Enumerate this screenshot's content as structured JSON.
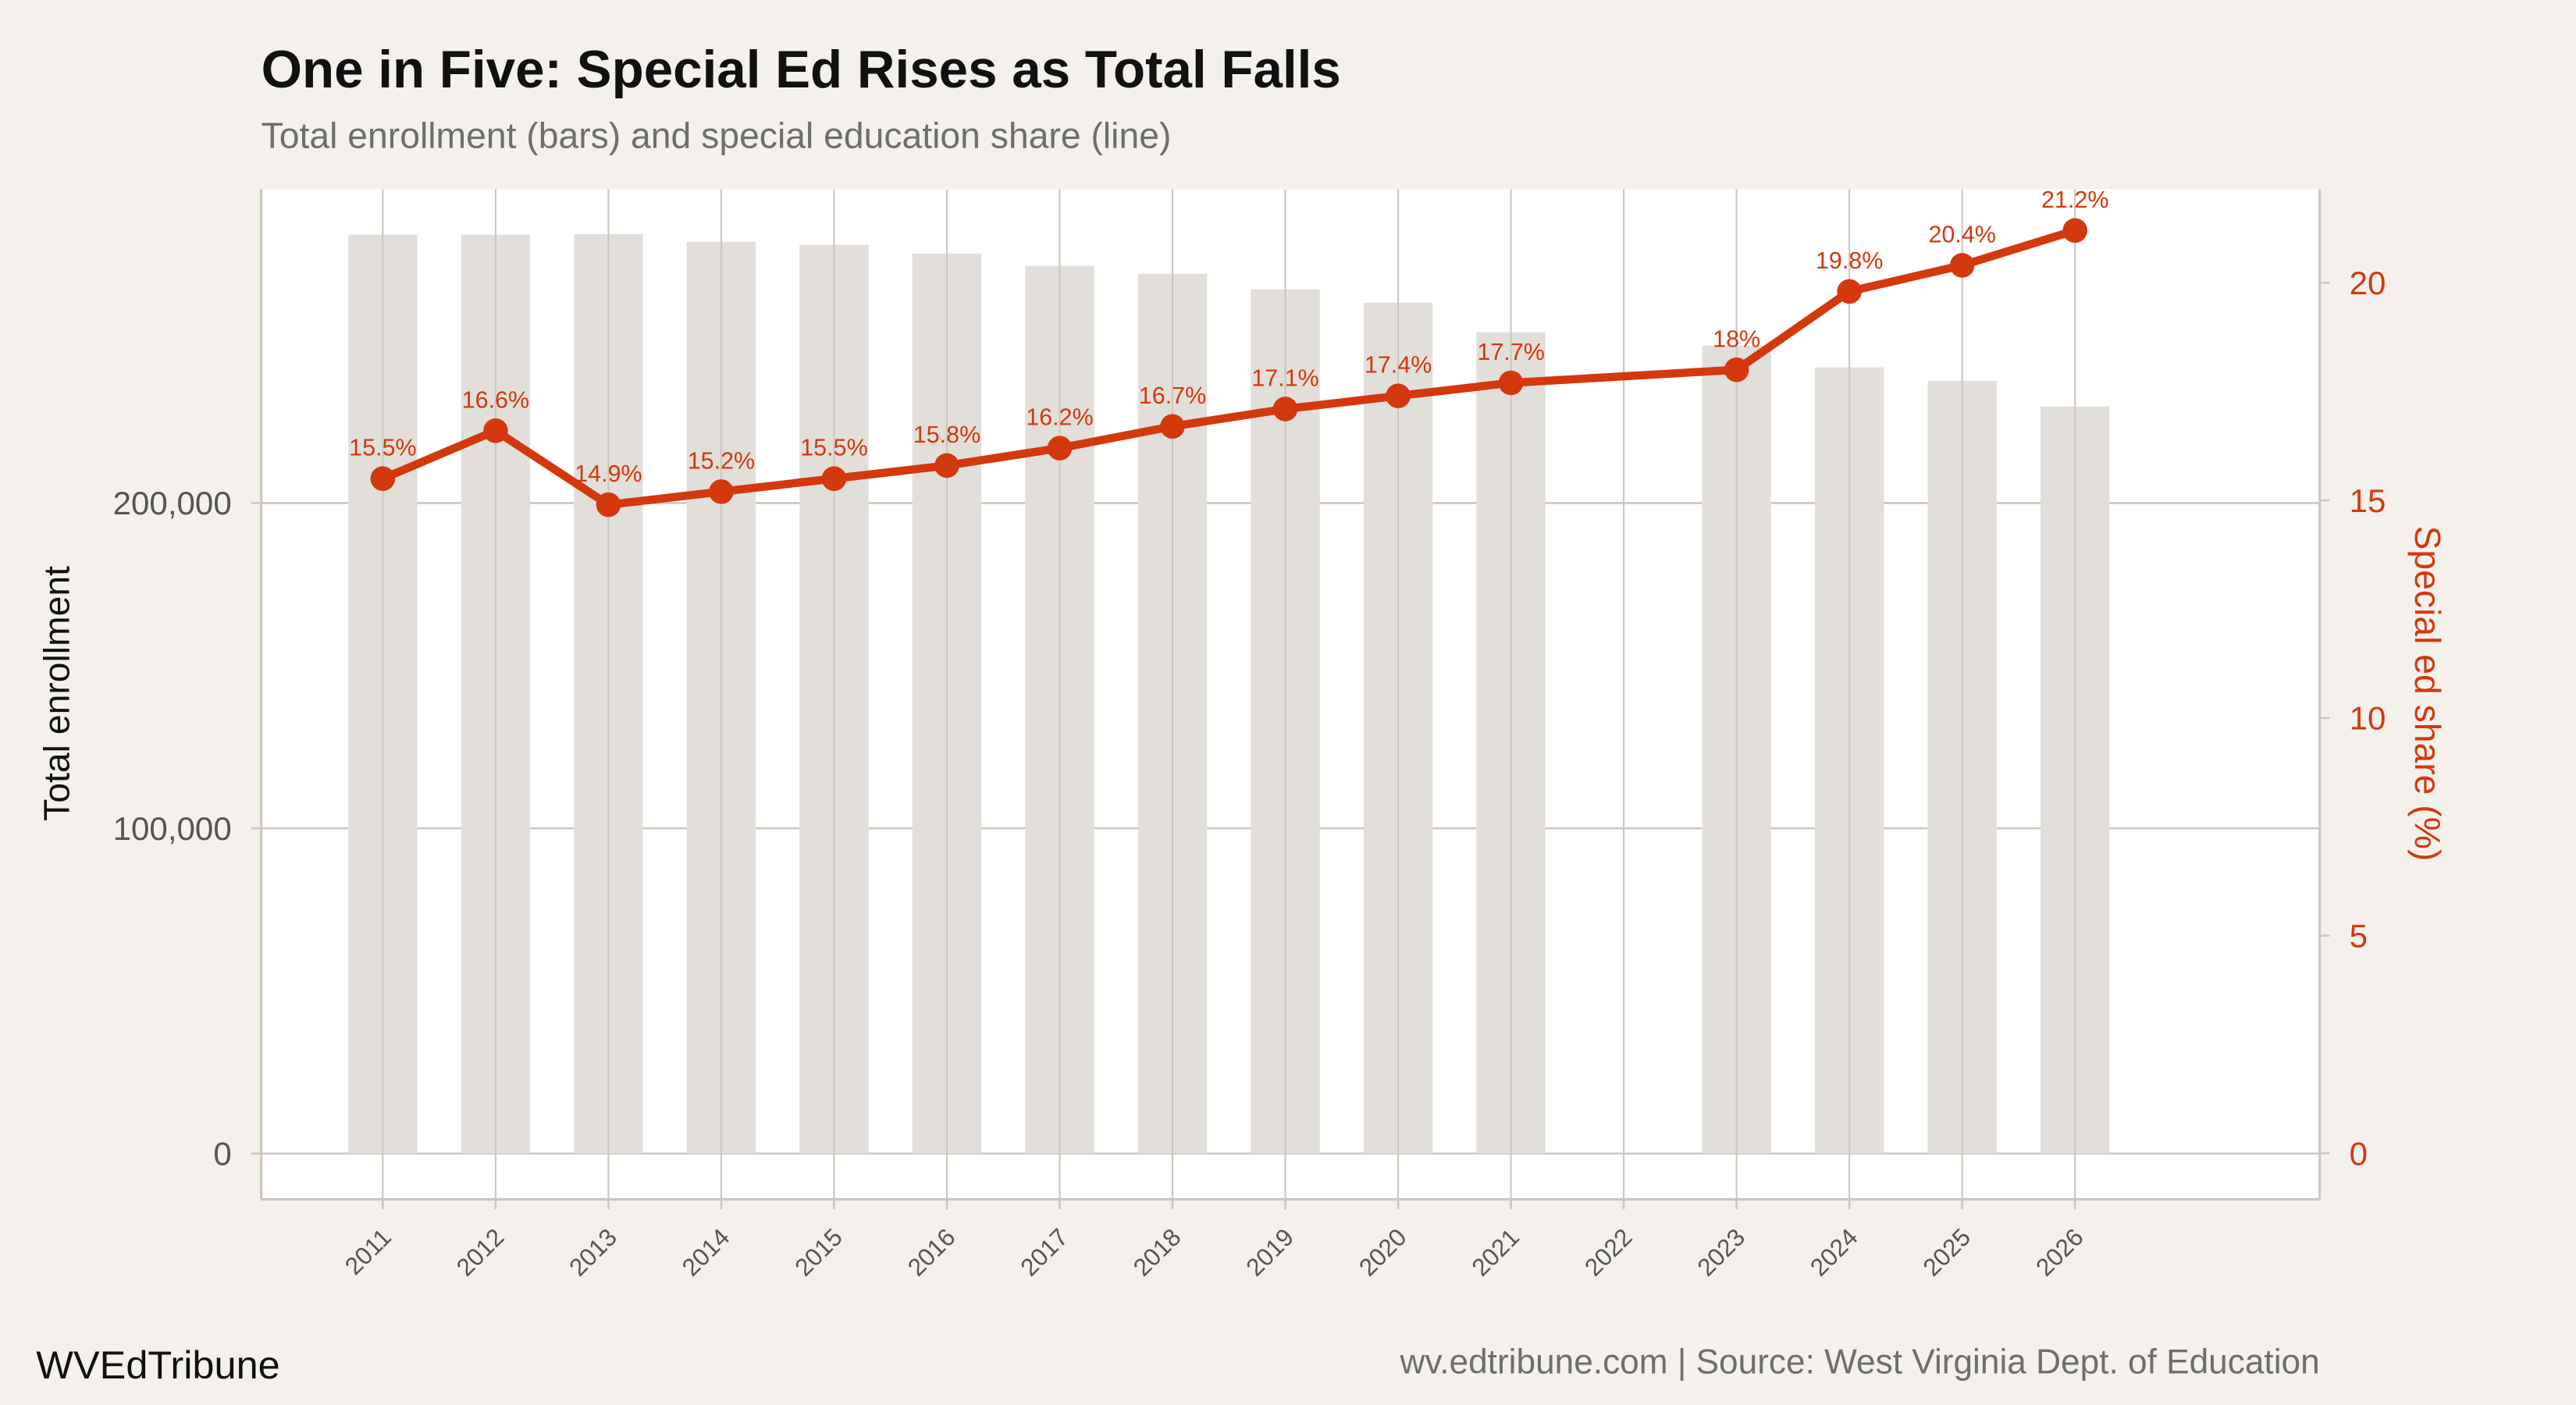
{
  "title": "One in Five: Special Ed Rises as Total Falls",
  "subtitle": "Total enrollment (bars) and special education share (line)",
  "brand": "WVEdTribune",
  "source": "wv.edtribune.com | Source: West Virginia Dept. of Education",
  "colors": {
    "background": "#f4f1ec",
    "panel": "#ffffff",
    "bar": "#e2dfda",
    "line": "#d4380d",
    "grid": "#ccc6bd"
  },
  "chart_data": {
    "type": "bar+line",
    "title": "One in Five: Special Ed Rises as Total Falls",
    "subtitle": "Total enrollment (bars) and special education share (line)",
    "xlabel": "",
    "ylabel": "Total enrollment",
    "y2label": "Special ed share (%)",
    "categories": [
      "2011",
      "2012",
      "2013",
      "2014",
      "2015",
      "2016",
      "2017",
      "2018",
      "2019",
      "2020",
      "2021",
      "2022",
      "2023",
      "2024",
      "2025",
      "2026"
    ],
    "bars": {
      "values": [
        282500,
        282500,
        282700,
        280300,
        279400,
        276700,
        272900,
        270500,
        265700,
        261600,
        252500,
        null,
        248400,
        241700,
        237600,
        229700
      ]
    },
    "line": {
      "values": [
        15.5,
        16.6,
        14.9,
        15.2,
        15.5,
        15.8,
        16.2,
        16.7,
        17.1,
        17.4,
        17.7,
        null,
        18.0,
        19.8,
        20.4,
        21.2
      ],
      "labels": [
        "15.5%",
        "16.6%",
        "14.9%",
        "15.2%",
        "15.5%",
        "15.8%",
        "16.2%",
        "16.7%",
        "17.1%",
        "17.4%",
        "17.7%",
        "",
        "18%",
        "19.8%",
        "20.4%",
        "21.2%"
      ]
    },
    "yticks": [
      {
        "value": 0,
        "label": "0"
      },
      {
        "value": 100000,
        "label": "100,000"
      },
      {
        "value": 200000,
        "label": "200,000"
      }
    ],
    "y2ticks": [
      {
        "value": 0,
        "label": "0"
      },
      {
        "value": 5,
        "label": "5"
      },
      {
        "value": 10,
        "label": "10"
      },
      {
        "value": 15,
        "label": "15"
      },
      {
        "value": 20,
        "label": "20"
      }
    ],
    "ylim": [
      -14100,
      296500
    ],
    "y2lim": [
      -1.06,
      22.15
    ],
    "grid": true,
    "legend": "none"
  }
}
